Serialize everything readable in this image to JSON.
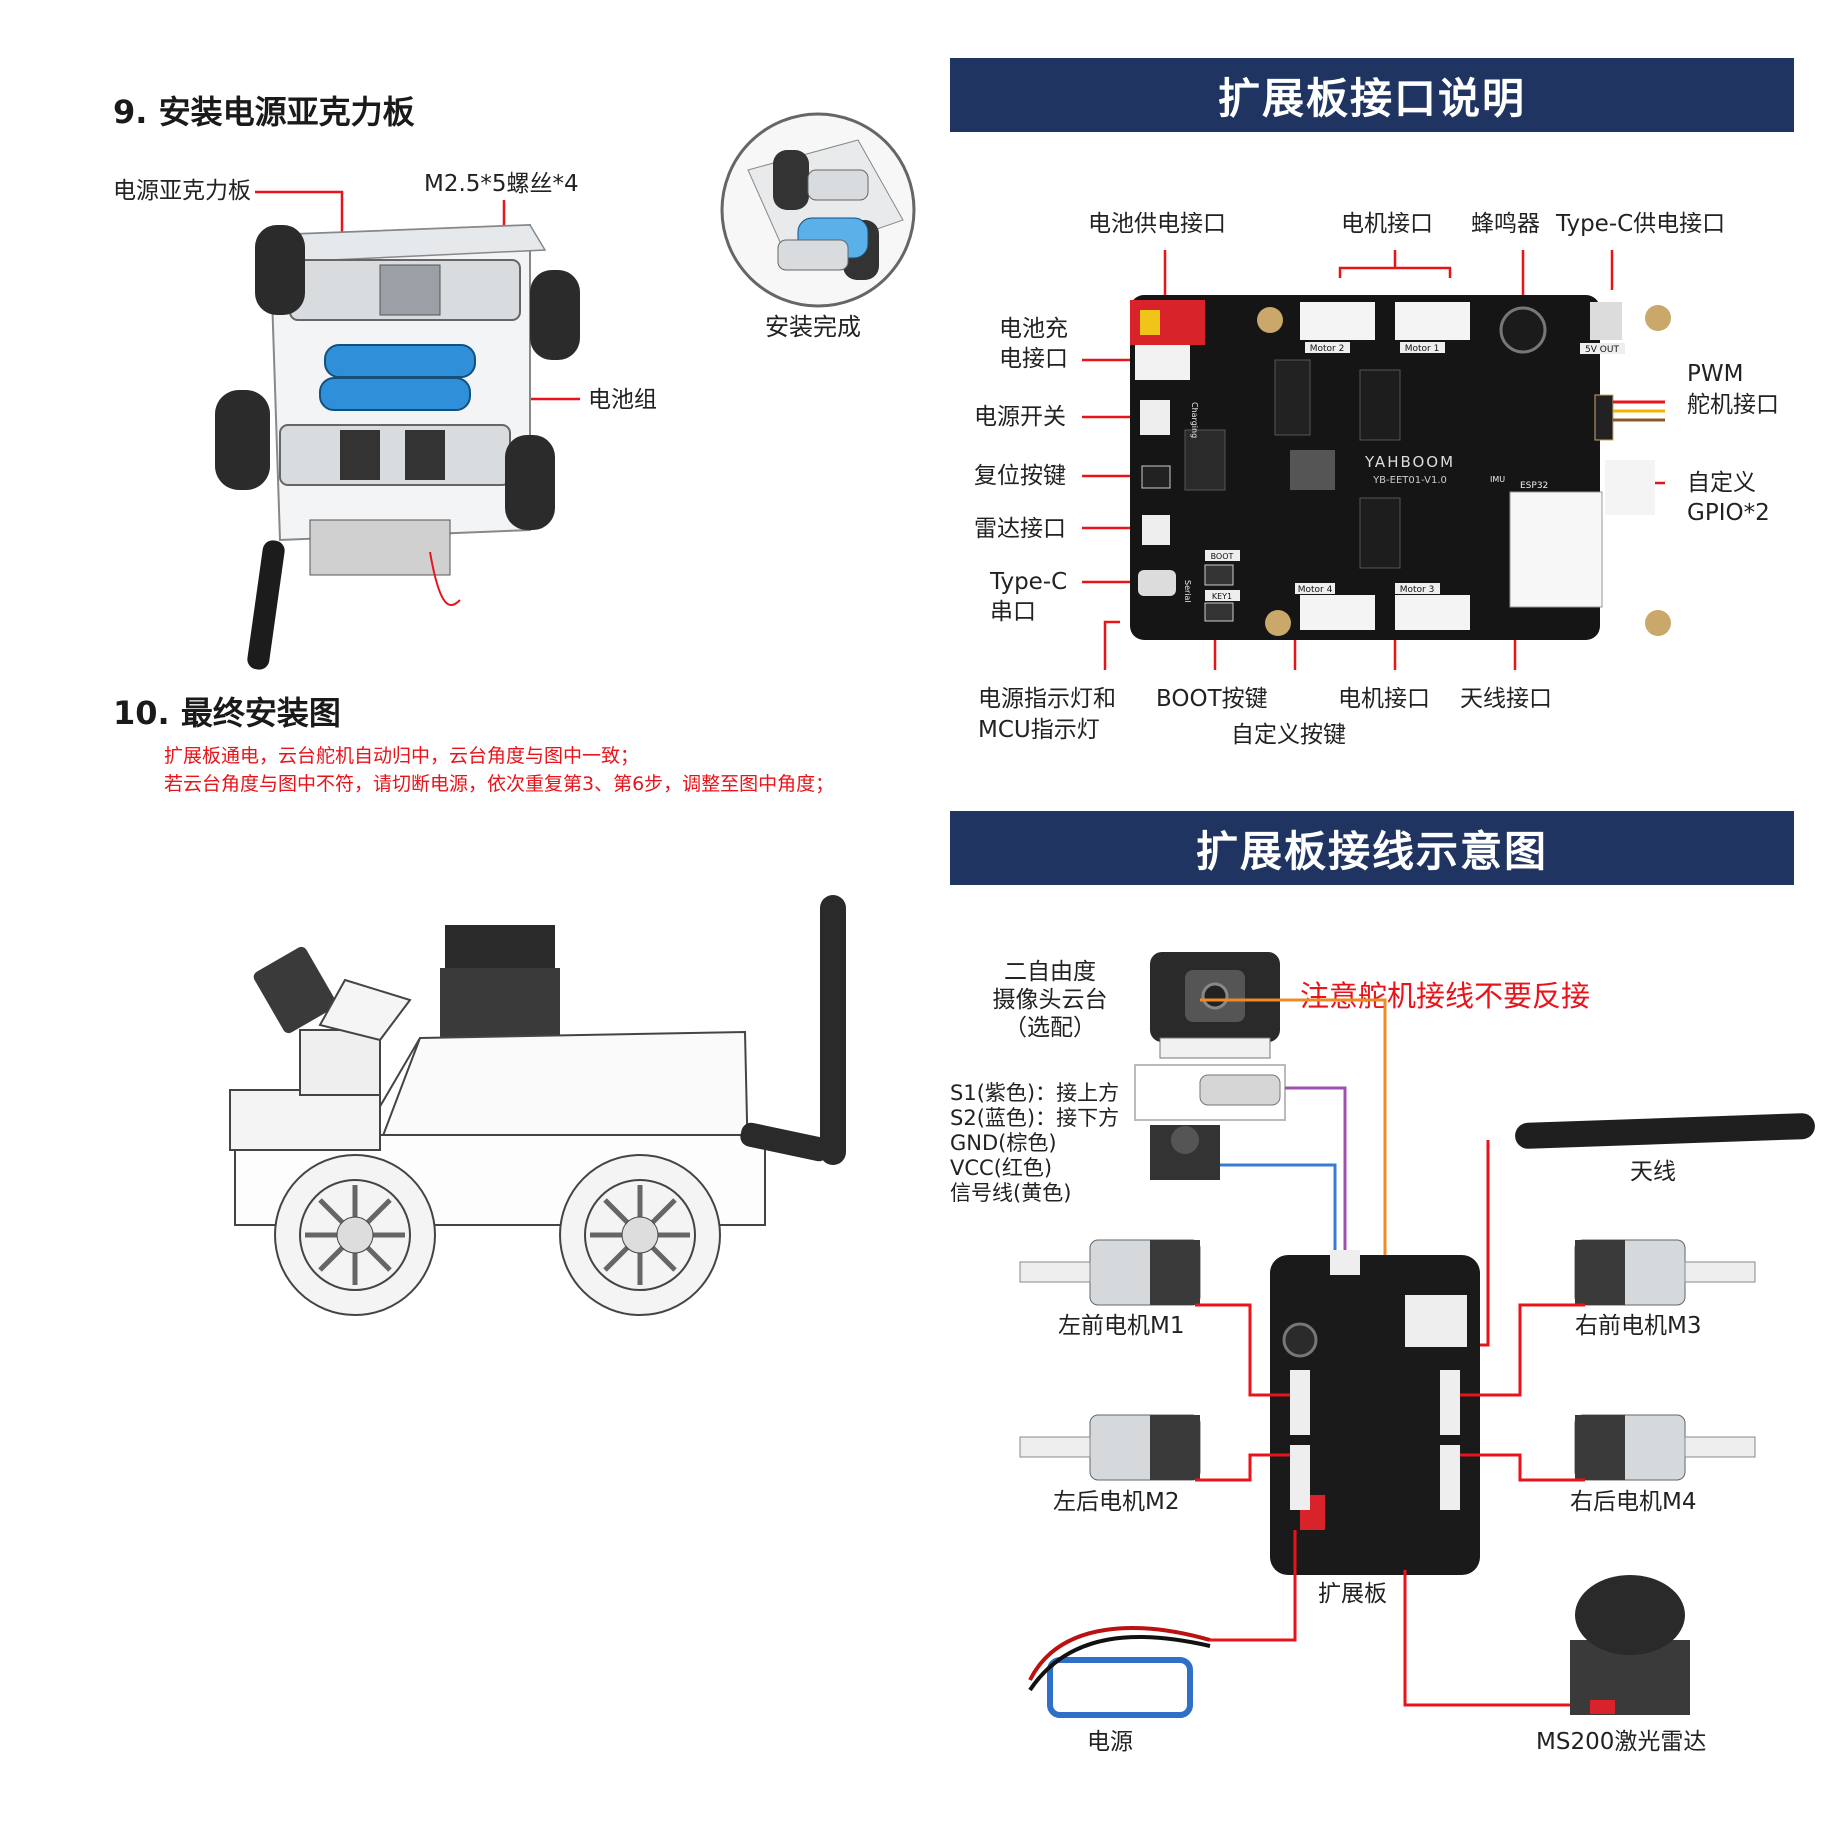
{
  "step9": {
    "title": "9. 安装电源亚克力板",
    "labels": {
      "acrylic_board": "电源亚克力板",
      "screws": "M2.5*5螺丝*4",
      "battery_pack": "电池组",
      "install_done": "安装完成"
    }
  },
  "step10": {
    "title": "10. 最终安装图",
    "notes": [
      "扩展板通电，云台舵机自动归中，云台角度与图中一致；",
      "若云台角度与图中不符，请切断电源，依次重复第3、第6步，调整至图中角度；"
    ]
  },
  "interfaces": {
    "banner": "扩展板接口说明",
    "labels": {
      "battery_power": "电池供电接口",
      "motor_top": "电机接口",
      "buzzer": "蜂鸣器",
      "typec_power": "Type-C供电接口",
      "charging_1": "电池充",
      "charging_2": "电接口",
      "power_switch": "电源开关",
      "reset_key": "复位按键",
      "lidar_port": "雷达接口",
      "typec_serial_1": "Type-C",
      "typec_serial_2": "串口",
      "pwm_1": "PWM",
      "pwm_2": "舵机接口",
      "gpio_1": "自定义",
      "gpio_2": "GPIO*2",
      "indicator_1": "电源指示灯和",
      "indicator_2": "MCU指示灯",
      "boot_key": "BOOT按键",
      "custom_key": "自定义按键",
      "motor_bottom": "电机接口",
      "antenna_port": "天线接口"
    },
    "board_silkscreen": {
      "motor2": "Motor 2",
      "motor1": "Motor 1",
      "motor4": "Motor 4",
      "motor3": "Motor 3",
      "brand": "YAHBOOM",
      "model": "YB-EET01-V1.0",
      "v5_out": "5V OUT",
      "esp32": "ESP32",
      "boot": "BOOT",
      "key1": "KEY1",
      "charging": "Charging",
      "serial": "Serial",
      "imu": "IMU"
    }
  },
  "wiring": {
    "banner": "扩展板接线示意图",
    "warning": "注意舵机接线不要反接",
    "gimbal": [
      "二自由度",
      "摄像头云台",
      "（选配）"
    ],
    "servo_wires": [
      "S1(紫色)：接上方",
      "S2(蓝色)：接下方",
      "GND(棕色)",
      "VCC(红色)",
      "信号线(黄色)"
    ],
    "antenna": "天线",
    "motor_front_left": "左前电机M1",
    "motor_rear_left": "左后电机M2",
    "motor_front_right": "右前电机M3",
    "motor_rear_right": "右后电机M4",
    "board": "扩展板",
    "power": "电源",
    "lidar": "MS200激光雷达"
  },
  "colors": {
    "banner_bg": "#1f3461",
    "accent_red": "#e8141a",
    "wire_purple": "#a050b0",
    "wire_blue": "#3a7bd5",
    "wire_orange": "#f08a24",
    "battery_blue": "#2f8fd8"
  }
}
